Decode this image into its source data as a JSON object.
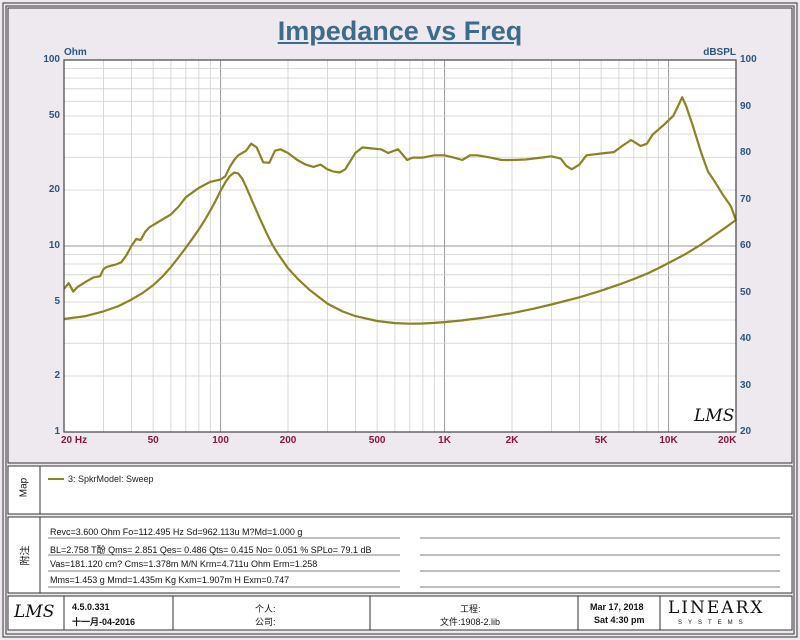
{
  "chart_data": {
    "type": "line",
    "title": "Impedance vs Freq",
    "y_left_unit": "Ohm",
    "y_right_unit": "dBSPL",
    "x_scale": "log",
    "y_left_scale": "log",
    "xlim": [
      20,
      20000
    ],
    "y_left_lim": [
      1,
      100
    ],
    "y_right_lim": [
      20,
      100
    ],
    "grid": true,
    "x_ticks": [
      {
        "v": 20,
        "label": "20  Hz"
      },
      {
        "v": 50,
        "label": "50"
      },
      {
        "v": 100,
        "label": "100"
      },
      {
        "v": 200,
        "label": "200"
      },
      {
        "v": 500,
        "label": "500"
      },
      {
        "v": 1000,
        "label": "1K"
      },
      {
        "v": 2000,
        "label": "2K"
      },
      {
        "v": 5000,
        "label": "5K"
      },
      {
        "v": 10000,
        "label": "10K"
      },
      {
        "v": 20000,
        "label": "20K"
      }
    ],
    "y_left_ticks": [
      {
        "v": 1,
        "label": "1"
      },
      {
        "v": 2,
        "label": "2"
      },
      {
        "v": 5,
        "label": "5"
      },
      {
        "v": 10,
        "label": "10"
      },
      {
        "v": 20,
        "label": "20"
      },
      {
        "v": 50,
        "label": "50"
      },
      {
        "v": 100,
        "label": "100"
      }
    ],
    "y_right_ticks": [
      {
        "v": 20,
        "label": "20"
      },
      {
        "v": 30,
        "label": "30"
      },
      {
        "v": 40,
        "label": "40"
      },
      {
        "v": 50,
        "label": "50"
      },
      {
        "v": 60,
        "label": "60"
      },
      {
        "v": 70,
        "label": "70"
      },
      {
        "v": 80,
        "label": "80"
      },
      {
        "v": 90,
        "label": "90"
      },
      {
        "v": 100,
        "label": "100"
      }
    ],
    "series": [
      {
        "name": "3: SpkrModel: Sweep",
        "axis": "right",
        "unit": "dBSPL",
        "color": "#8a8420",
        "points": [
          [
            20,
            50.8
          ],
          [
            21,
            52
          ],
          [
            22,
            50.2
          ],
          [
            23,
            51.2
          ],
          [
            25,
            52.3
          ],
          [
            27,
            53.2
          ],
          [
            29,
            53.5
          ],
          [
            30,
            55
          ],
          [
            31,
            55.5
          ],
          [
            34,
            56
          ],
          [
            36,
            56.5
          ],
          [
            38,
            58
          ],
          [
            40,
            60
          ],
          [
            42,
            61.5
          ],
          [
            44,
            61.3
          ],
          [
            46,
            63
          ],
          [
            48,
            64
          ],
          [
            50,
            64.5
          ],
          [
            55,
            65.7
          ],
          [
            60,
            66.8
          ],
          [
            65,
            68.5
          ],
          [
            70,
            70.5
          ],
          [
            80,
            72.5
          ],
          [
            90,
            73.8
          ],
          [
            100,
            74.3
          ],
          [
            105,
            75
          ],
          [
            110,
            77
          ],
          [
            115,
            78.5
          ],
          [
            120,
            79.5
          ],
          [
            130,
            80.5
          ],
          [
            137,
            82
          ],
          [
            145,
            81.2
          ],
          [
            155,
            78
          ],
          [
            165,
            77.9
          ],
          [
            175,
            80.5
          ],
          [
            185,
            80.8
          ],
          [
            200,
            80
          ],
          [
            220,
            78.5
          ],
          [
            240,
            77.5
          ],
          [
            260,
            77
          ],
          [
            280,
            77.5
          ],
          [
            300,
            76.5
          ],
          [
            320,
            76
          ],
          [
            340,
            75.8
          ],
          [
            360,
            76.5
          ],
          [
            400,
            80
          ],
          [
            430,
            81.2
          ],
          [
            470,
            81
          ],
          [
            520,
            80.8
          ],
          [
            560,
            80
          ],
          [
            620,
            80.8
          ],
          [
            680,
            78.5
          ],
          [
            720,
            79
          ],
          [
            800,
            79
          ],
          [
            900,
            79.5
          ],
          [
            1000,
            79.5
          ],
          [
            1100,
            79
          ],
          [
            1200,
            78.5
          ],
          [
            1300,
            79.5
          ],
          [
            1400,
            79.5
          ],
          [
            1600,
            79
          ],
          [
            1800,
            78.5
          ],
          [
            2000,
            78.5
          ],
          [
            2300,
            78.6
          ],
          [
            2700,
            79
          ],
          [
            3000,
            79.3
          ],
          [
            3300,
            78.8
          ],
          [
            3500,
            77.2
          ],
          [
            3700,
            76.5
          ],
          [
            4000,
            77.5
          ],
          [
            4300,
            79.5
          ],
          [
            5000,
            79.9
          ],
          [
            5700,
            80.2
          ],
          [
            6200,
            81.5
          ],
          [
            6800,
            82.8
          ],
          [
            7500,
            81.5
          ],
          [
            8000,
            82
          ],
          [
            8500,
            84
          ],
          [
            9500,
            86
          ],
          [
            10500,
            88
          ],
          [
            11000,
            90
          ],
          [
            11500,
            92
          ],
          [
            12000,
            90
          ],
          [
            12800,
            86
          ],
          [
            14000,
            80
          ],
          [
            15000,
            76
          ],
          [
            16000,
            74
          ],
          [
            17500,
            71
          ],
          [
            19000,
            68.5
          ],
          [
            20000,
            65.5
          ]
        ]
      },
      {
        "name": "",
        "axis": "left",
        "unit": "Ohm",
        "color": "#8a8420",
        "points": [
          [
            20,
            4.05
          ],
          [
            25,
            4.2
          ],
          [
            30,
            4.45
          ],
          [
            35,
            4.75
          ],
          [
            40,
            5.15
          ],
          [
            45,
            5.6
          ],
          [
            50,
            6.15
          ],
          [
            55,
            6.85
          ],
          [
            60,
            7.7
          ],
          [
            65,
            8.7
          ],
          [
            70,
            9.8
          ],
          [
            75,
            11
          ],
          [
            80,
            12.3
          ],
          [
            85,
            13.8
          ],
          [
            90,
            15.5
          ],
          [
            95,
            17.5
          ],
          [
            100,
            19.8
          ],
          [
            105,
            22
          ],
          [
            110,
            23.8
          ],
          [
            115,
            24.8
          ],
          [
            120,
            24.5
          ],
          [
            125,
            23
          ],
          [
            130,
            20.8
          ],
          [
            140,
            16.9
          ],
          [
            150,
            14
          ],
          [
            160,
            11.8
          ],
          [
            170,
            10.2
          ],
          [
            180,
            9.1
          ],
          [
            200,
            7.6
          ],
          [
            220,
            6.7
          ],
          [
            250,
            5.8
          ],
          [
            300,
            4.9
          ],
          [
            350,
            4.45
          ],
          [
            400,
            4.2
          ],
          [
            500,
            3.95
          ],
          [
            600,
            3.85
          ],
          [
            700,
            3.82
          ],
          [
            800,
            3.83
          ],
          [
            900,
            3.86
          ],
          [
            1000,
            3.9
          ],
          [
            1200,
            3.98
          ],
          [
            1500,
            4.12
          ],
          [
            2000,
            4.35
          ],
          [
            2500,
            4.6
          ],
          [
            3000,
            4.85
          ],
          [
            4000,
            5.3
          ],
          [
            5000,
            5.75
          ],
          [
            6000,
            6.2
          ],
          [
            7000,
            6.65
          ],
          [
            8000,
            7.1
          ],
          [
            9000,
            7.6
          ],
          [
            10000,
            8.1
          ],
          [
            12000,
            9.1
          ],
          [
            14000,
            10.2
          ],
          [
            16000,
            11.4
          ],
          [
            18000,
            12.6
          ],
          [
            20000,
            13.8
          ]
        ]
      }
    ]
  },
  "map_panel": {
    "label": "Map",
    "legend_entries": [
      "3: SpkrModel: Sweep"
    ]
  },
  "notes_panel": {
    "label": "附注",
    "lines": [
      "Revc=3.600 Ohm  Fo=112.495 Hz  Sd=962.113u M?Md=1.000 g",
      "BL=2.758 T酚  Qms= 2.851  Qes= 0.486  Qts= 0.415  No= 0.051 %  SPLo= 79.1 dB",
      "Vas=181.120 cm?  Cms=1.378m M/N  Krm=4.711u Ohm  Erm=1.258",
      "Mms=1.453 g  Mmd=1.435m Kg  Kxm=1.907m H  Exm=0.747"
    ]
  },
  "footer": {
    "logo": "LMS",
    "version": "4.5.0.331",
    "date_line": "十一月-04-2016",
    "person_label": "个人:",
    "company_label": "公司:",
    "project_label": "工程:",
    "file_label": "文件:1908-2.lib",
    "date": "Mar 17, 2018",
    "time": "Sat  4:30 pm",
    "brand": "LINEARX",
    "brand_sub": "SYSTEMS"
  },
  "plot_logo": "LMS"
}
